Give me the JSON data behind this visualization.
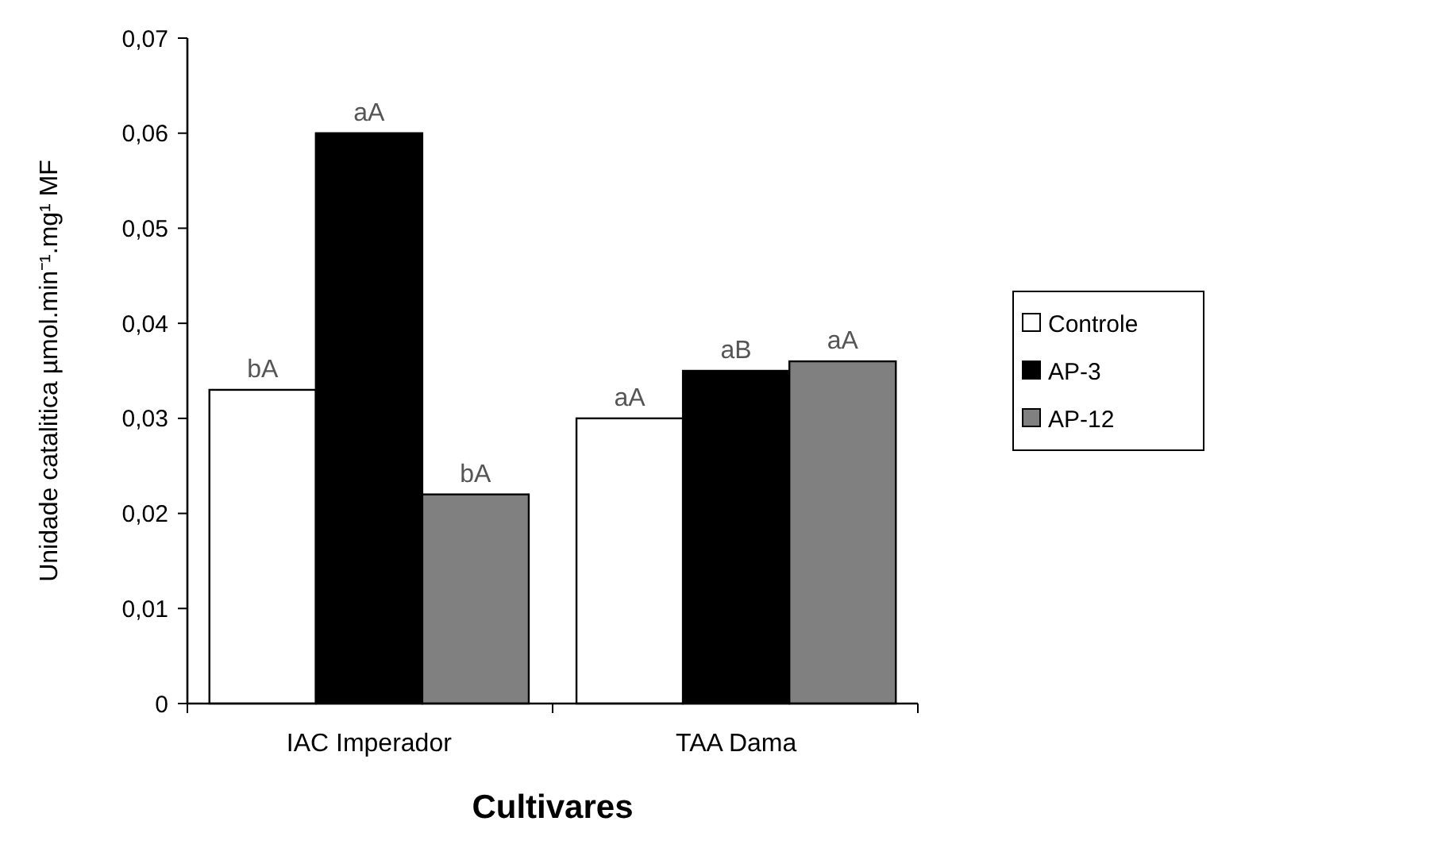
{
  "chart_data": {
    "type": "bar",
    "xlabel": "Cultivares",
    "ylabel": "Unidade catalitica µmol.min⁻¹.mg¹ MF",
    "categories": [
      "IAC Imperador",
      "TAA Dama"
    ],
    "series": [
      {
        "name": "Controle",
        "color": "#ffffff",
        "values": [
          0.033,
          0.03
        ],
        "value_labels": [
          "bA",
          "aA"
        ]
      },
      {
        "name": "AP-3",
        "color": "#000000",
        "values": [
          0.06,
          0.035
        ],
        "value_labels": [
          "aA",
          "aB"
        ]
      },
      {
        "name": "AP-12",
        "color": "#808080",
        "values": [
          0.022,
          0.036
        ],
        "value_labels": [
          "bA",
          "aA"
        ]
      }
    ],
    "ylim": [
      0,
      0.07
    ],
    "yticks": [
      {
        "value": 0,
        "label": "0"
      },
      {
        "value": 0.01,
        "label": "0,01"
      },
      {
        "value": 0.02,
        "label": "0,02"
      },
      {
        "value": 0.03,
        "label": "0,03"
      },
      {
        "value": 0.04,
        "label": "0,04"
      },
      {
        "value": 0.05,
        "label": "0,05"
      },
      {
        "value": 0.06,
        "label": "0,06"
      },
      {
        "value": 0.07,
        "label": "0,07"
      }
    ],
    "grid": false,
    "legend": "right"
  }
}
